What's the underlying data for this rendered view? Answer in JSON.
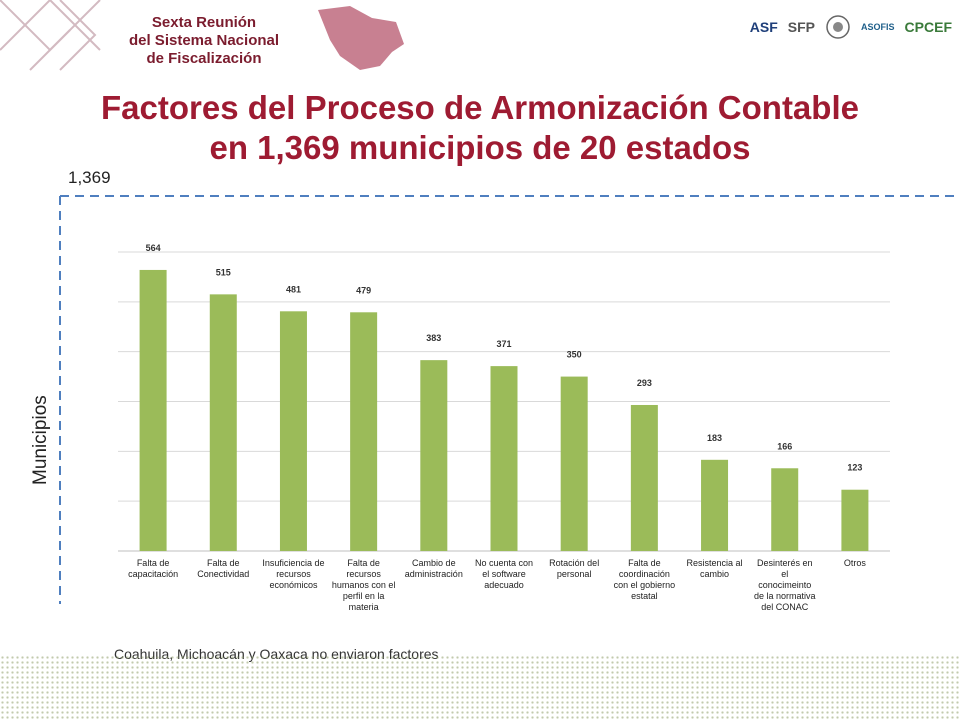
{
  "header": {
    "brand_title": "Sexta Reunión\ndel Sistema Nacional\nde Fiscalización",
    "partners": [
      {
        "mark": "ASF",
        "icon": "asf-logo"
      },
      {
        "mark": "SFP",
        "icon": "sfp-logo"
      },
      {
        "mark": "",
        "icon": "mexico-seal"
      },
      {
        "mark": "ASOFIS",
        "icon": "asofis-logo"
      },
      {
        "mark": "CPCEF",
        "icon": "cpcef-logo"
      }
    ]
  },
  "slide": {
    "title_line1": "Factores del Proceso de Armonización Contable",
    "title_line2": "en 1,369 municipios de 20 estados",
    "total": "1,369",
    "y_axis_label": "Municipios",
    "footnote": "Coahuila, Michoacán y Oaxaca no enviaron factores"
  },
  "colors": {
    "bar": "#9bbb59",
    "title": "#9e1b32",
    "dashed_frame": "#4f7fbf",
    "grid": "#d9d9d9"
  },
  "chart_data": {
    "type": "bar",
    "categories": [
      [
        "Falta de",
        "capacitación"
      ],
      [
        "Falta de",
        "Conectividad"
      ],
      [
        "Insuficiencia de",
        "recursos",
        "económicos"
      ],
      [
        "Falta de",
        "recursos",
        "humanos con el",
        "perfil en la",
        "materia"
      ],
      [
        "Cambio de",
        "administración"
      ],
      [
        "No cuenta con",
        "el software",
        "adecuado"
      ],
      [
        "Rotación del",
        "personal"
      ],
      [
        "Falta de",
        "coordinación",
        "con el gobierno",
        "estatal"
      ],
      [
        "Resistencia al",
        "cambio"
      ],
      [
        "Desinterés en",
        "el",
        "conocimeinto",
        "de la normativa",
        "del CONAC"
      ],
      [
        "Otros"
      ]
    ],
    "values": [
      564,
      515,
      481,
      479,
      383,
      371,
      350,
      293,
      183,
      166,
      123
    ],
    "ylim": [
      0,
      600
    ],
    "grid": true,
    "ylabel": "Municipios"
  }
}
